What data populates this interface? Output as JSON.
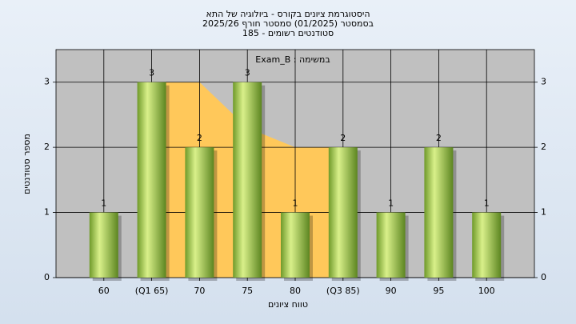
{
  "chart_data": {
    "type": "bar",
    "title": [
      "היסטוגרמת ציונים בקורס - ביולוגיה של התא",
      "בסמסטר (01/2025) סמסטר חורף 2025/26",
      "סטודנטים רשומים - 185"
    ],
    "annotation": "במשימה : Exam_B",
    "x_label": "טווח ציונים",
    "y_label": "מספר סטודנטים",
    "categories": [
      "60",
      "(Q1 65)",
      "70",
      "75",
      "80",
      "(Q3 85)",
      "90",
      "95",
      "100"
    ],
    "values": [
      1,
      3,
      2,
      3,
      1,
      2,
      1,
      2,
      1
    ],
    "color": "#9ccc4c",
    "quartile_area": {
      "color": "#ffc85a",
      "values": [
        null,
        3,
        3,
        2.3,
        2,
        2,
        null,
        null,
        null
      ]
    },
    "ylim": [
      0,
      3.5
    ],
    "yticks": [
      0,
      1,
      2,
      3
    ],
    "grid": true
  }
}
